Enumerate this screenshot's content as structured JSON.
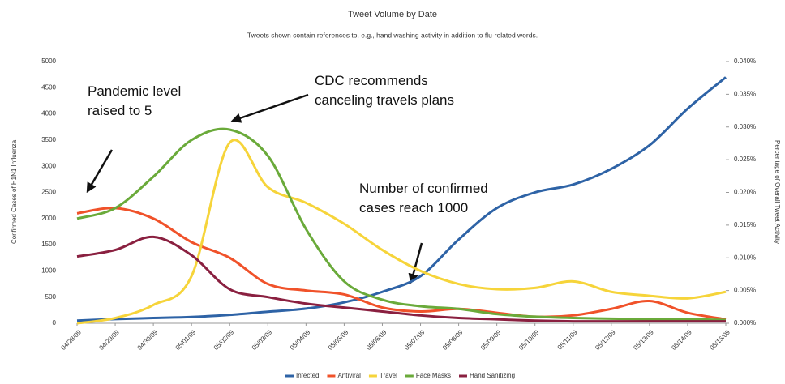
{
  "chart_data": {
    "type": "line",
    "title": "Tweet Volume by Date",
    "subtitle": "Tweets shown contain references to, e.g., hand washing activity in addition to flu-related words.",
    "y_label": "Confirmed Cases of H1N1 Influenza",
    "y2_label": "Percentage of Overall Tweet Activity",
    "categories": [
      "04/28/09",
      "04/29/09",
      "04/30/09",
      "05/01/09",
      "05/02/09",
      "05/03/09",
      "05/04/09",
      "05/05/09",
      "05/06/09",
      "05/07/09",
      "05/08/09",
      "05/09/09",
      "05/10/09",
      "05/11/09",
      "05/12/09",
      "05/13/09",
      "05/14/09",
      "05/15/09"
    ],
    "ylim": [
      0,
      5000
    ],
    "yticks": [
      0,
      500,
      1000,
      1500,
      2000,
      2500,
      3000,
      3500,
      4000,
      4500,
      5000
    ],
    "y2lim": [
      0,
      0.04
    ],
    "y2ticks": [
      {
        "value": 0,
        "label": "0.000%"
      },
      {
        "value": 0.005,
        "label": "0.005%"
      },
      {
        "value": 0.01,
        "label": "0.010%"
      },
      {
        "value": 0.015,
        "label": "0.015%"
      },
      {
        "value": 0.02,
        "label": "0.020%"
      },
      {
        "value": 0.025,
        "label": "0.025%"
      },
      {
        "value": 0.03,
        "label": "0.030%"
      },
      {
        "value": 0.035,
        "label": "0.035%"
      },
      {
        "value": 0.04,
        "label": "0.040%"
      }
    ],
    "grid": false,
    "legend": "bottom",
    "series": [
      {
        "name": "Infected",
        "color": "#2e63a6",
        "values": [
          50,
          80,
          100,
          120,
          160,
          220,
          280,
          400,
          600,
          900,
          1600,
          2200,
          2500,
          2650,
          2950,
          3400,
          4100,
          4700
        ]
      },
      {
        "name": "Antiviral",
        "color": "#f0522a",
        "axis": "y2",
        "values": [
          0.0168,
          0.0176,
          0.016,
          0.0124,
          0.01,
          0.006,
          0.005,
          0.0044,
          0.0024,
          0.0018,
          0.0022,
          0.0016,
          0.001,
          0.0012,
          0.0022,
          0.0034,
          0.0016,
          0.0006
        ]
      },
      {
        "name": "Travel",
        "color": "#f6d43a",
        "axis": "y2",
        "values": [
          0.0,
          0.0008,
          0.0028,
          0.0072,
          0.0276,
          0.0208,
          0.0184,
          0.0152,
          0.0112,
          0.008,
          0.006,
          0.0052,
          0.0054,
          0.0064,
          0.0048,
          0.0042,
          0.0038,
          0.0048
        ]
      },
      {
        "name": "Face Masks",
        "color": "#6aaa3a",
        "axis": "y2",
        "values": [
          0.016,
          0.0176,
          0.0224,
          0.028,
          0.0296,
          0.0256,
          0.0144,
          0.0064,
          0.0036,
          0.0026,
          0.0022,
          0.0014,
          0.001,
          0.0008,
          0.0007,
          0.0006,
          0.0006,
          0.0005
        ]
      },
      {
        "name": "Hand Sanitizing",
        "color": "#8a2040",
        "axis": "y2",
        "values": [
          0.0102,
          0.0112,
          0.0132,
          0.0104,
          0.0052,
          0.004,
          0.003,
          0.0024,
          0.0018,
          0.0012,
          0.0008,
          0.0006,
          0.0004,
          0.0003,
          0.0003,
          0.0003,
          0.0003,
          0.0003
        ]
      }
    ],
    "annotations": [
      {
        "lines": [
          "Pandemic level",
          "raised to 5"
        ]
      },
      {
        "lines": [
          "CDC recommends",
          "canceling travels plans"
        ]
      },
      {
        "lines": [
          "Number of confirmed",
          "cases reach 1000"
        ]
      }
    ]
  }
}
